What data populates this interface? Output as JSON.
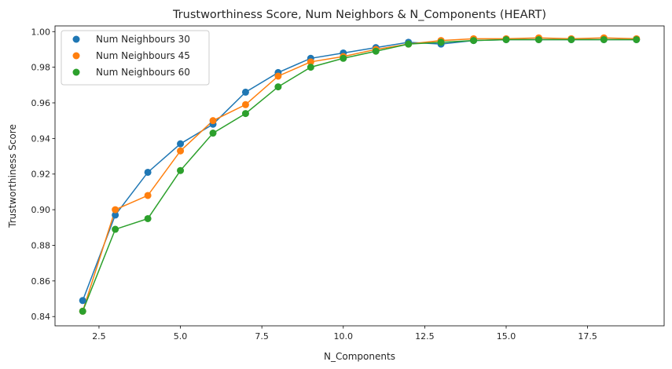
{
  "chart_data": {
    "type": "line",
    "title": "Trustworthiness Score, Num Neighbors & N_Components (HEART)",
    "xlabel": "N_Components",
    "ylabel": "Trustworthiness Score",
    "xlim": [
      1.15,
      19.85
    ],
    "ylim": [
      0.8348,
      1.0032
    ],
    "xticks": [
      2.5,
      5.0,
      7.5,
      10.0,
      12.5,
      15.0,
      17.5
    ],
    "xtick_labels": [
      "2.5",
      "5.0",
      "7.5",
      "10.0",
      "12.5",
      "15.0",
      "17.5"
    ],
    "yticks": [
      0.84,
      0.86,
      0.88,
      0.9,
      0.92,
      0.94,
      0.96,
      0.98,
      1.0
    ],
    "ytick_labels": [
      "0.84",
      "0.86",
      "0.88",
      "0.90",
      "0.92",
      "0.94",
      "0.96",
      "0.98",
      "1.00"
    ],
    "grid": false,
    "legend_position": "top-left",
    "x": [
      2,
      3,
      4,
      5,
      6,
      7,
      8,
      9,
      10,
      11,
      12,
      13,
      14,
      15,
      16,
      17,
      18,
      19
    ],
    "series": [
      {
        "name": "Num Neighbours 30",
        "color": "#1f77b4",
        "values": [
          0.849,
          0.897,
          0.921,
          0.937,
          0.948,
          0.966,
          0.977,
          0.985,
          0.988,
          0.991,
          0.994,
          0.993,
          0.995,
          0.9955,
          0.9955,
          0.9955,
          0.9955,
          0.9955
        ]
      },
      {
        "name": "Num Neighbours 45",
        "color": "#ff7f0e",
        "values": [
          0.843,
          0.9,
          0.908,
          0.933,
          0.95,
          0.959,
          0.975,
          0.983,
          0.986,
          0.99,
          0.993,
          0.995,
          0.996,
          0.996,
          0.9965,
          0.996,
          0.9965,
          0.996
        ]
      },
      {
        "name": "Num Neighbours 60",
        "color": "#2ca02c",
        "values": [
          0.843,
          0.889,
          0.895,
          0.922,
          0.943,
          0.954,
          0.969,
          0.98,
          0.985,
          0.989,
          0.993,
          0.994,
          0.995,
          0.9955,
          0.9955,
          0.9955,
          0.9955,
          0.9955
        ]
      }
    ]
  }
}
